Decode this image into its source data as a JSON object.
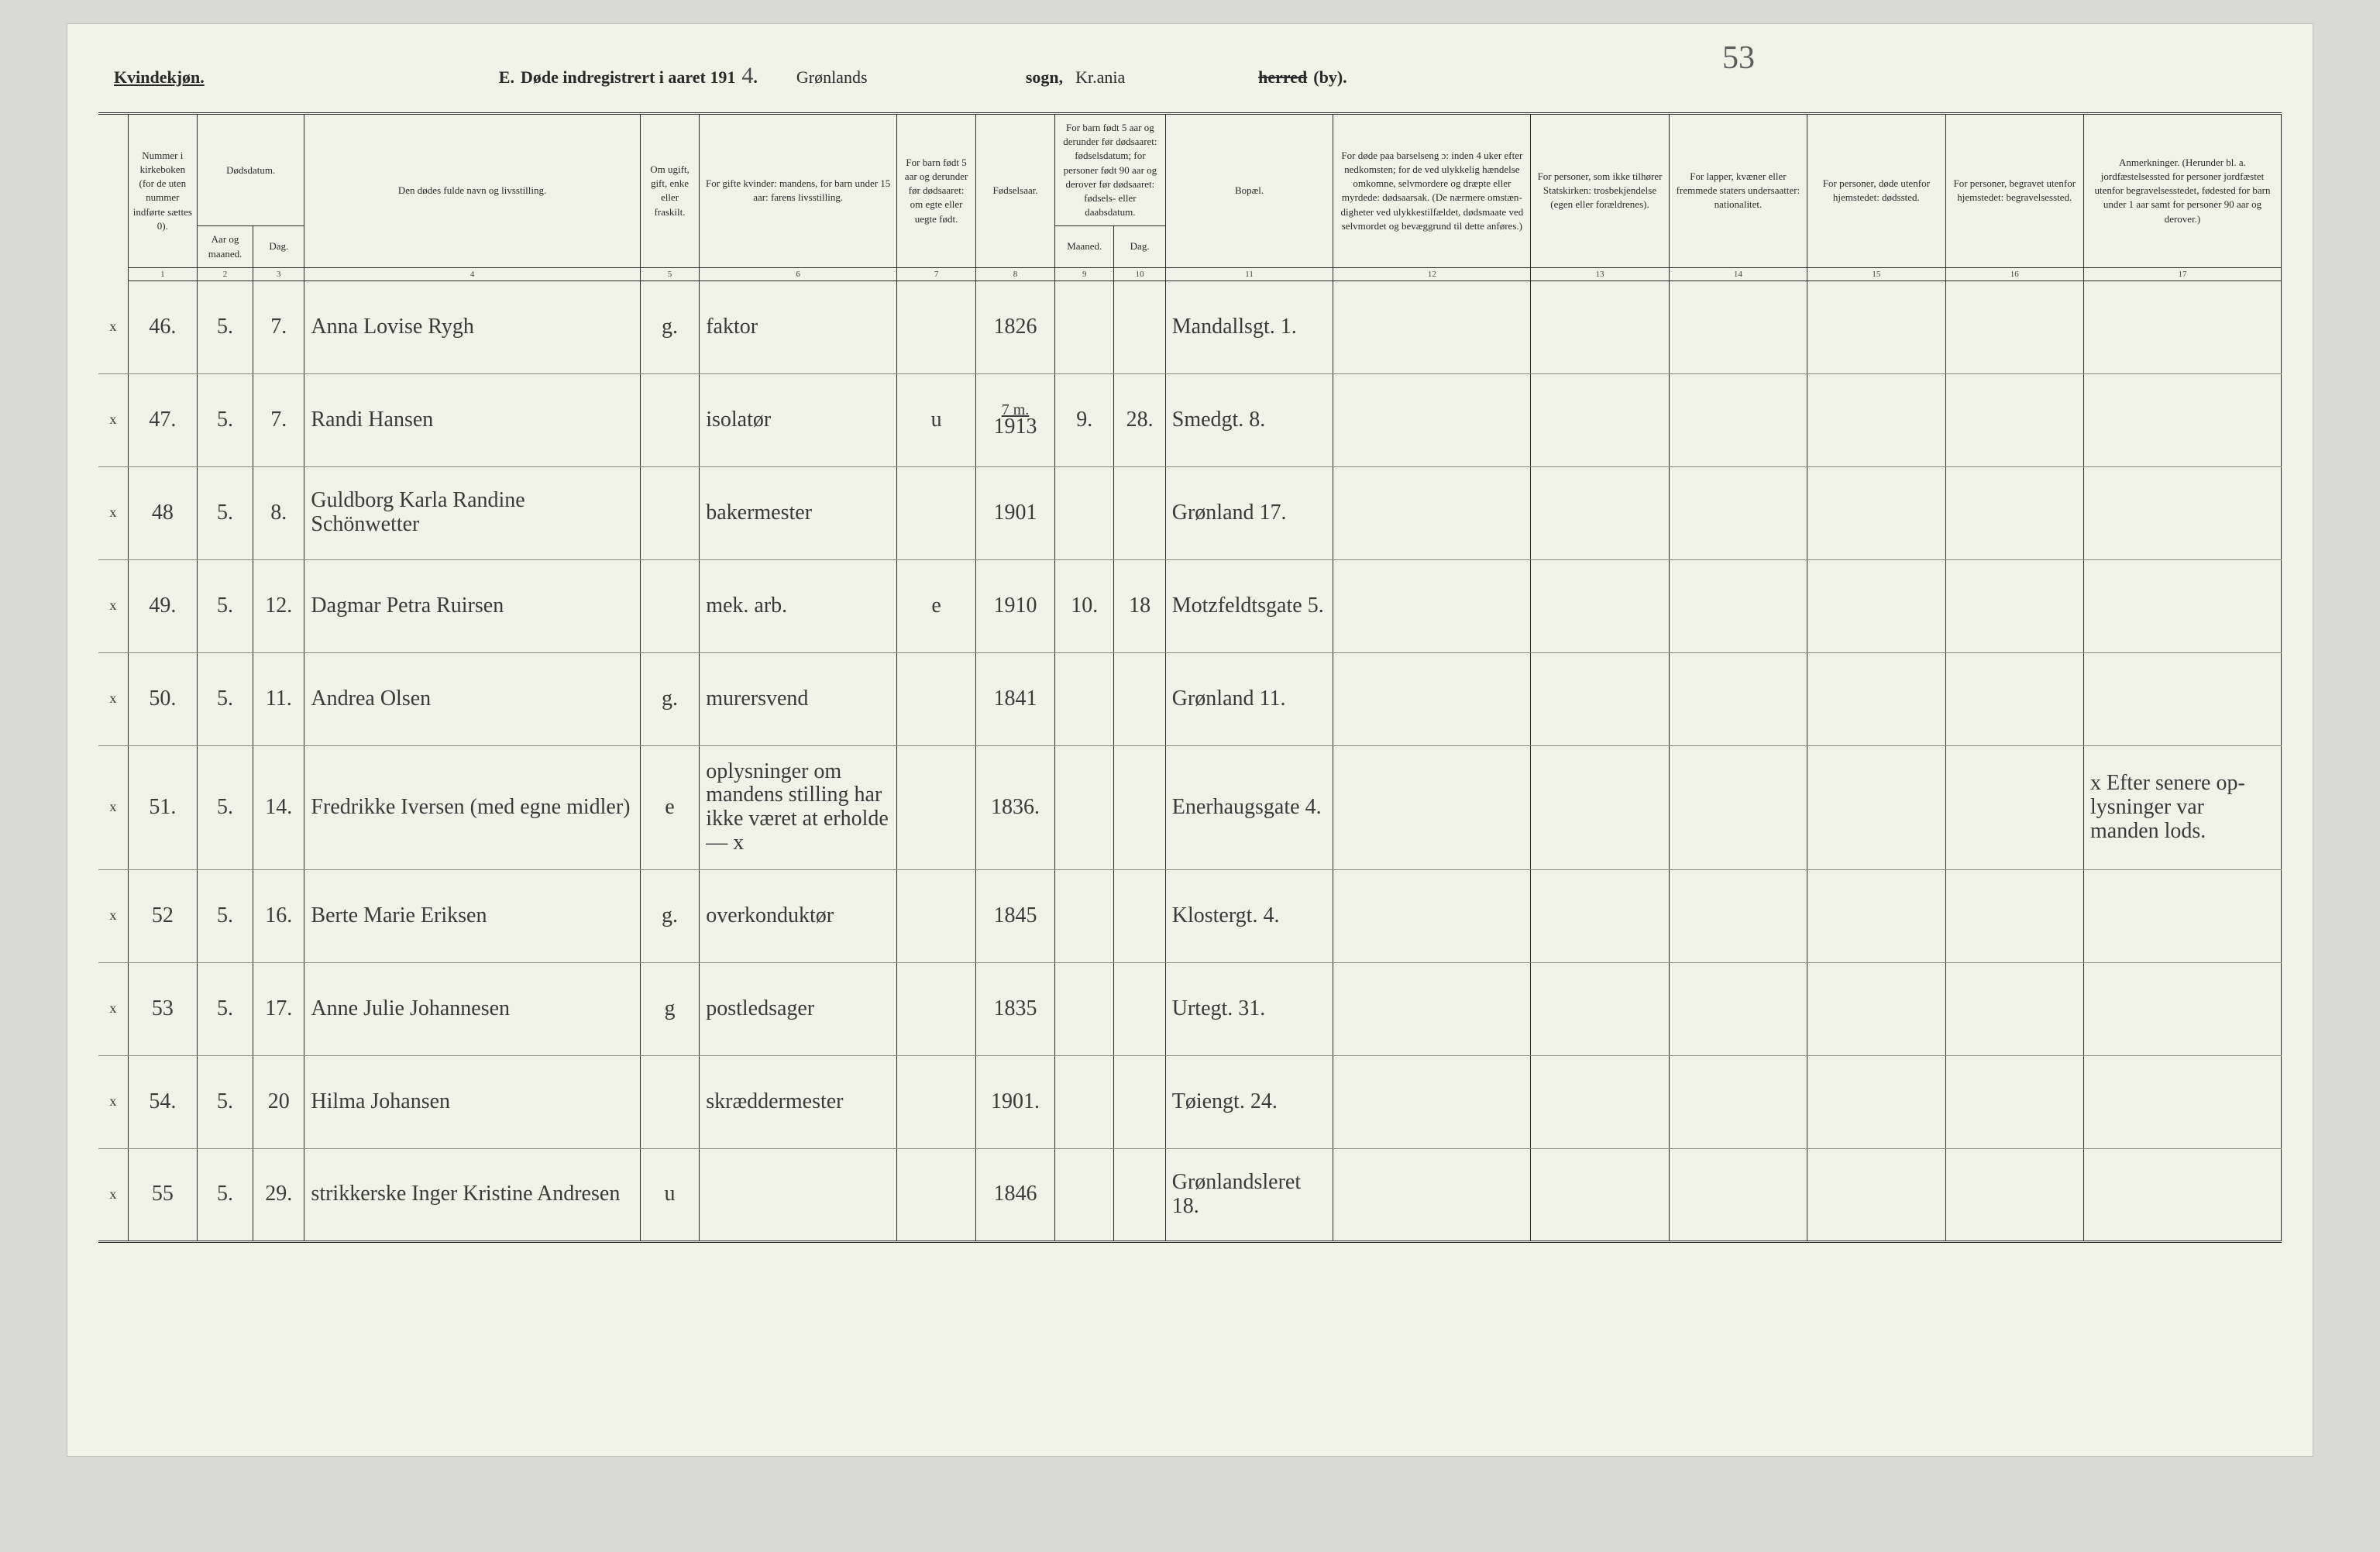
{
  "colors": {
    "page_bg": "#f0f2e8",
    "outer_bg": "#d8d8d4",
    "ink": "#2a2a2a",
    "cursive_ink": "#3a3a3a",
    "rule_light": "#8a8a82"
  },
  "page_number_handwritten": "53",
  "header": {
    "gender": "Kvindekjøn.",
    "form_letter": "E.",
    "title_prefix": "Døde indregistrert i aaret 191",
    "year_suffix": "4",
    "parish_label": "sogn,",
    "parish_value": "Grønlands",
    "district_value": "Kr.ania",
    "district_label_struck": "herred",
    "district_label_tail": "(by)."
  },
  "columns": {
    "c1": "Nummer i kirke­boken (for de uten nummer indførte sættes 0).",
    "c2_group": "Dødsdatum.",
    "c2a": "Aar og maaned.",
    "c2b": "Dag.",
    "c4": "Den dødes fulde navn og livsstilling.",
    "c5": "Om ugift, gift, enke eller fraskilt.",
    "c6": "For gifte kvinder: mandens,\nfor barn under 15 aar: farens livsstilling.",
    "c7": "For barn født 5 aar og derunder før døds­aaret: om egte eller uegte født.",
    "c8": "Fødsels­aar.",
    "c9_group": "For barn født 5 aar og der­under før dødsaaret: fødselsdatum; for personer født 90 aar og derover før dødsaaret: fødsels- eller daabsdatum.",
    "c9a": "Maaned.",
    "c9b": "Dag.",
    "c11": "Bopæl.",
    "c12": "For døde paa barselseng ɔ: inden 4 uker efter nedkomsten; for de ved ulykkelig hændelse omkomne, selvmordere og dræpte eller myrdede: dødsaarsak. (De nærmere omstæn­digheter ved ulykkes­tilfældet, dødsmaate ved selvmordet og bevæggrund til dette anføres.)",
    "c13": "For personer, som ikke tilhører Statskirken: trosbekjendelse (egen eller forældrenes).",
    "c14": "For lapper, kvæner eller fremmede staters undersaatter: nationalitet.",
    "c15": "For personer, døde utenfor hjemstedet: dødssted.",
    "c16": "For personer, begravet utenfor hjemstedet: begravelsessted.",
    "c17": "Anmerkninger. (Herunder bl. a. jordfæstelsessted for personer jordfæstet utenfor begravelses­stedet, fødested for barn under 1 aar samt for personer 90 aar og derover.)"
  },
  "colnums": [
    "1",
    "2",
    "3",
    "4",
    "5",
    "6",
    "7",
    "8",
    "9",
    "10",
    "11",
    "12",
    "13",
    "14",
    "15",
    "16",
    "17"
  ],
  "rows": [
    {
      "mark": "x",
      "num": "46.",
      "aar": "5.",
      "dag": "7.",
      "name": "Anna Lovise Rygh",
      "status": "g.",
      "mandens": "faktor",
      "egte": "",
      "faar": "1826",
      "mnd": "",
      "dagb": "",
      "bopel": "Mandallsgt. 1.",
      "aarsak": "",
      "tro": "",
      "nat": "",
      "dsted": "",
      "bsted": "",
      "anm": ""
    },
    {
      "mark": "x",
      "num": "47.",
      "aar": "5.",
      "dag": "7.",
      "name": "Randi Hansen",
      "status": "",
      "mandens": "isolatør",
      "egte": "u",
      "faar": "1913",
      "mnd": "9.",
      "dagb": "28.",
      "bopel": "Smedgt. 8.",
      "aarsak": "",
      "tro": "",
      "nat": "",
      "dsted": "",
      "bsted": "",
      "anm": "",
      "note_over_faar": "7 m."
    },
    {
      "mark": "x",
      "num": "48",
      "aar": "5.",
      "dag": "8.",
      "name": "Guldborg Karla Randine Schönwetter",
      "status": "",
      "mandens": "bakermester",
      "egte": "",
      "faar": "1901",
      "mnd": "",
      "dagb": "",
      "bopel": "Grønland 17.",
      "aarsak": "",
      "tro": "",
      "nat": "",
      "dsted": "",
      "bsted": "",
      "anm": ""
    },
    {
      "mark": "x",
      "num": "49.",
      "aar": "5.",
      "dag": "12.",
      "name": "Dagmar Petra Ruirsen",
      "status": "",
      "mandens": "mek. arb.",
      "egte": "e",
      "faar": "1910",
      "mnd": "10.",
      "dagb": "18",
      "bopel": "Motzfeldts­gate 5.",
      "aarsak": "",
      "tro": "",
      "nat": "",
      "dsted": "",
      "bsted": "",
      "anm": ""
    },
    {
      "mark": "x",
      "num": "50.",
      "aar": "5.",
      "dag": "11.",
      "name": "Andrea Olsen",
      "status": "g.",
      "mandens": "murersvend",
      "egte": "",
      "faar": "1841",
      "mnd": "",
      "dagb": "",
      "bopel": "Grønland 11.",
      "aarsak": "",
      "tro": "",
      "nat": "",
      "dsted": "",
      "bsted": "",
      "anm": ""
    },
    {
      "mark": "x",
      "num": "51.",
      "aar": "5.",
      "dag": "14.",
      "name": "Fredrikke Iversen (med egne midler)",
      "status": "e",
      "mandens": "oplysninger om mandens stilling har ikke været at erholde — x",
      "egte": "",
      "faar": "1836.",
      "mnd": "",
      "dagb": "",
      "bopel": "Enerhaugs­gate 4.",
      "aarsak": "",
      "tro": "",
      "nat": "",
      "dsted": "",
      "bsted": "",
      "anm": "x Efter senere op­lysninger var manden lods."
    },
    {
      "mark": "x",
      "num": "52",
      "aar": "5.",
      "dag": "16.",
      "name": "Berte Marie Eriksen",
      "status": "g.",
      "mandens": "overkonduktør",
      "egte": "",
      "faar": "1845",
      "mnd": "",
      "dagb": "",
      "bopel": "Klostergt. 4.",
      "aarsak": "",
      "tro": "",
      "nat": "",
      "dsted": "",
      "bsted": "",
      "anm": ""
    },
    {
      "mark": "x",
      "num": "53",
      "aar": "5.",
      "dag": "17.",
      "name": "Anne Julie Johannesen",
      "status": "g",
      "mandens": "postledsager",
      "egte": "",
      "faar": "1835",
      "mnd": "",
      "dagb": "",
      "bopel": "Urtegt. 31.",
      "aarsak": "",
      "tro": "",
      "nat": "",
      "dsted": "",
      "bsted": "",
      "anm": ""
    },
    {
      "mark": "x",
      "num": "54.",
      "aar": "5.",
      "dag": "20",
      "name": "Hilma Johansen",
      "status": "",
      "mandens": "skrædder­mester",
      "egte": "",
      "faar": "1901.",
      "mnd": "",
      "dagb": "",
      "bopel": "Tøiengt. 24.",
      "aarsak": "",
      "tro": "",
      "nat": "",
      "dsted": "",
      "bsted": "",
      "anm": ""
    },
    {
      "mark": "x",
      "num": "55",
      "aar": "5.",
      "dag": "29.",
      "name": "strikkerske Inger Kristine Andresen",
      "status": "u",
      "mandens": "",
      "egte": "",
      "faar": "1846",
      "mnd": "",
      "dagb": "",
      "bopel": "Grønlands­leret 18.",
      "aarsak": "",
      "tro": "",
      "nat": "",
      "dsted": "",
      "bsted": "",
      "anm": ""
    }
  ]
}
